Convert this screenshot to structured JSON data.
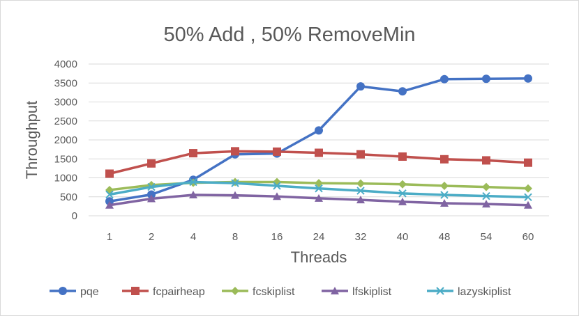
{
  "chart_data": {
    "type": "line",
    "title": "50% Add , 50% RemoveMin",
    "xlabel": "Threads",
    "ylabel": "Throughput",
    "categories": [
      "1",
      "2",
      "4",
      "8",
      "16",
      "24",
      "32",
      "40",
      "48",
      "54",
      "60"
    ],
    "ylim": [
      0,
      4000
    ],
    "yticks": [
      0,
      500,
      1000,
      1500,
      2000,
      2500,
      3000,
      3500,
      4000
    ],
    "grid": true,
    "legend_position": "bottom",
    "series": [
      {
        "name": "pqe",
        "color": "#4472c4",
        "marker": "circle",
        "values": [
          380,
          560,
          950,
          1620,
          1640,
          2250,
          3410,
          3280,
          3600,
          3610,
          3620
        ]
      },
      {
        "name": "fcpairheap",
        "color": "#c0504d",
        "marker": "square",
        "values": [
          1110,
          1380,
          1650,
          1700,
          1690,
          1660,
          1620,
          1560,
          1490,
          1460,
          1400
        ]
      },
      {
        "name": "fcskiplist",
        "color": "#9bbb59",
        "marker": "diamond",
        "values": [
          680,
          810,
          870,
          890,
          890,
          860,
          850,
          830,
          790,
          760,
          720
        ]
      },
      {
        "name": "lfskiplist",
        "color": "#8064a2",
        "marker": "triangle",
        "values": [
          280,
          450,
          550,
          540,
          510,
          460,
          420,
          370,
          330,
          310,
          280
        ]
      },
      {
        "name": "lazyskiplist",
        "color": "#4bacc6",
        "marker": "x",
        "values": [
          560,
          760,
          890,
          860,
          790,
          720,
          660,
          590,
          550,
          520,
          490
        ]
      }
    ]
  }
}
